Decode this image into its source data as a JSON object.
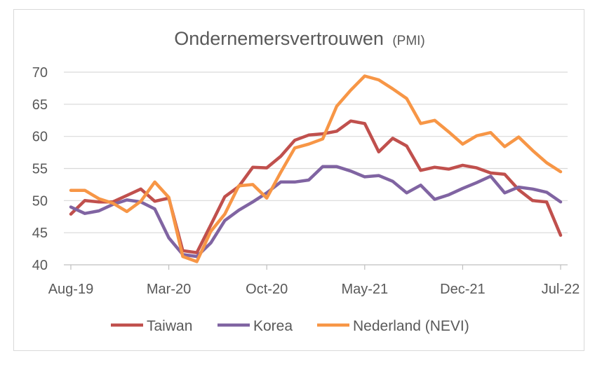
{
  "chart_data": {
    "type": "line",
    "title": "Ondernemersvertrouwen",
    "subtitle": "(PMI)",
    "xlabel": "",
    "ylabel": "",
    "ylim": [
      40,
      70
    ],
    "yticks": [
      40,
      45,
      50,
      55,
      60,
      65,
      70
    ],
    "grid": true,
    "legend_position": "bottom",
    "x": [
      "Aug-19",
      "Sep-19",
      "Oct-19",
      "Nov-19",
      "Dec-19",
      "Jan-20",
      "Feb-20",
      "Mar-20",
      "Apr-20",
      "May-20",
      "Jun-20",
      "Jul-20",
      "Aug-20",
      "Sep-20",
      "Oct-20",
      "Nov-20",
      "Dec-20",
      "Jan-21",
      "Feb-21",
      "Mar-21",
      "Apr-21",
      "May-21",
      "Jun-21",
      "Jul-21",
      "Aug-21",
      "Sep-21",
      "Oct-21",
      "Nov-21",
      "Dec-21",
      "Jan-22",
      "Feb-22",
      "Mar-22",
      "Apr-22",
      "May-22",
      "Jun-22",
      "Jul-22"
    ],
    "xtick_labels": [
      "Aug-19",
      "Mar-20",
      "Oct-20",
      "May-21",
      "Dec-21",
      "Jul-22"
    ],
    "xtick_indices": [
      0,
      7,
      14,
      21,
      28,
      35
    ],
    "series": [
      {
        "name": "Taiwan",
        "color": "#c0504d",
        "values": [
          47.9,
          50.0,
          49.8,
          49.8,
          50.8,
          51.8,
          49.9,
          50.4,
          42.2,
          41.9,
          46.2,
          50.6,
          52.2,
          55.2,
          55.1,
          56.9,
          59.4,
          60.2,
          60.4,
          60.8,
          62.4,
          62.0,
          57.6,
          59.7,
          58.5,
          54.7,
          55.2,
          54.9,
          55.5,
          55.1,
          54.3,
          54.1,
          51.7,
          50.0,
          49.8,
          44.6
        ]
      },
      {
        "name": "Korea",
        "color": "#8064a2",
        "values": [
          49.0,
          48.0,
          48.4,
          49.4,
          50.1,
          49.8,
          48.7,
          44.2,
          41.6,
          41.3,
          43.4,
          46.9,
          48.5,
          49.8,
          51.2,
          52.9,
          52.9,
          53.2,
          55.3,
          55.3,
          54.6,
          53.7,
          53.9,
          53.0,
          51.2,
          52.4,
          50.2,
          50.9,
          51.9,
          52.8,
          53.8,
          51.2,
          52.1,
          51.8,
          51.3,
          49.8
        ]
      },
      {
        "name": "Nederland (NEVI)",
        "color": "#f79646",
        "values": [
          51.6,
          51.6,
          50.3,
          49.6,
          48.3,
          49.9,
          52.9,
          50.5,
          41.3,
          40.5,
          45.2,
          47.9,
          52.3,
          52.5,
          50.4,
          54.4,
          58.2,
          58.8,
          59.6,
          64.7,
          67.2,
          69.4,
          68.8,
          67.4,
          65.9,
          62.0,
          62.5,
          60.7,
          58.8,
          60.1,
          60.6,
          58.4,
          59.9,
          57.8,
          55.9,
          54.5
        ]
      }
    ]
  }
}
